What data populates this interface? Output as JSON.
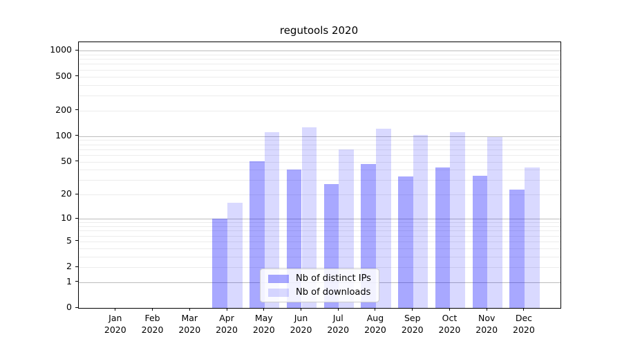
{
  "chart_data": {
    "type": "bar",
    "title": "regutools 2020",
    "year_label": "2020",
    "categories": [
      "Jan",
      "Feb",
      "Mar",
      "Apr",
      "May",
      "Jun",
      "Jul",
      "Aug",
      "Sep",
      "Oct",
      "Nov",
      "Dec"
    ],
    "series": [
      {
        "name": "Nb of distinct IPs",
        "color": "rgba(0,0,255,0.34)",
        "values": [
          0,
          0,
          0,
          10,
          51,
          40,
          27,
          47,
          33,
          43,
          34,
          23
        ]
      },
      {
        "name": "Nb of downloads",
        "color": "rgba(0,0,255,0.15)",
        "values": [
          0,
          0,
          0,
          16,
          112,
          127,
          70,
          123,
          104,
          112,
          97,
          43
        ]
      }
    ],
    "yscale": "log1p",
    "ylim": [
      0,
      1255
    ],
    "y_ticks": [
      0,
      1,
      2,
      5,
      10,
      20,
      50,
      100,
      200,
      500,
      1000
    ],
    "grid_major_values": [
      1,
      10,
      100,
      1000
    ],
    "grid_minor_values": [
      2,
      3,
      4,
      5,
      6,
      7,
      8,
      9,
      20,
      30,
      40,
      50,
      60,
      70,
      80,
      90,
      200,
      300,
      400,
      500,
      600,
      700,
      800,
      900
    ],
    "legend_position": "lower center",
    "colors": {
      "bar_distinct_ips": "rgba(0,0,255,0.34)",
      "bar_downloads": "rgba(0,0,255,0.15)",
      "grid_major": "#bcbcbc",
      "grid_minor": "#ececec",
      "axis": "#000000",
      "text": "#000000"
    }
  }
}
